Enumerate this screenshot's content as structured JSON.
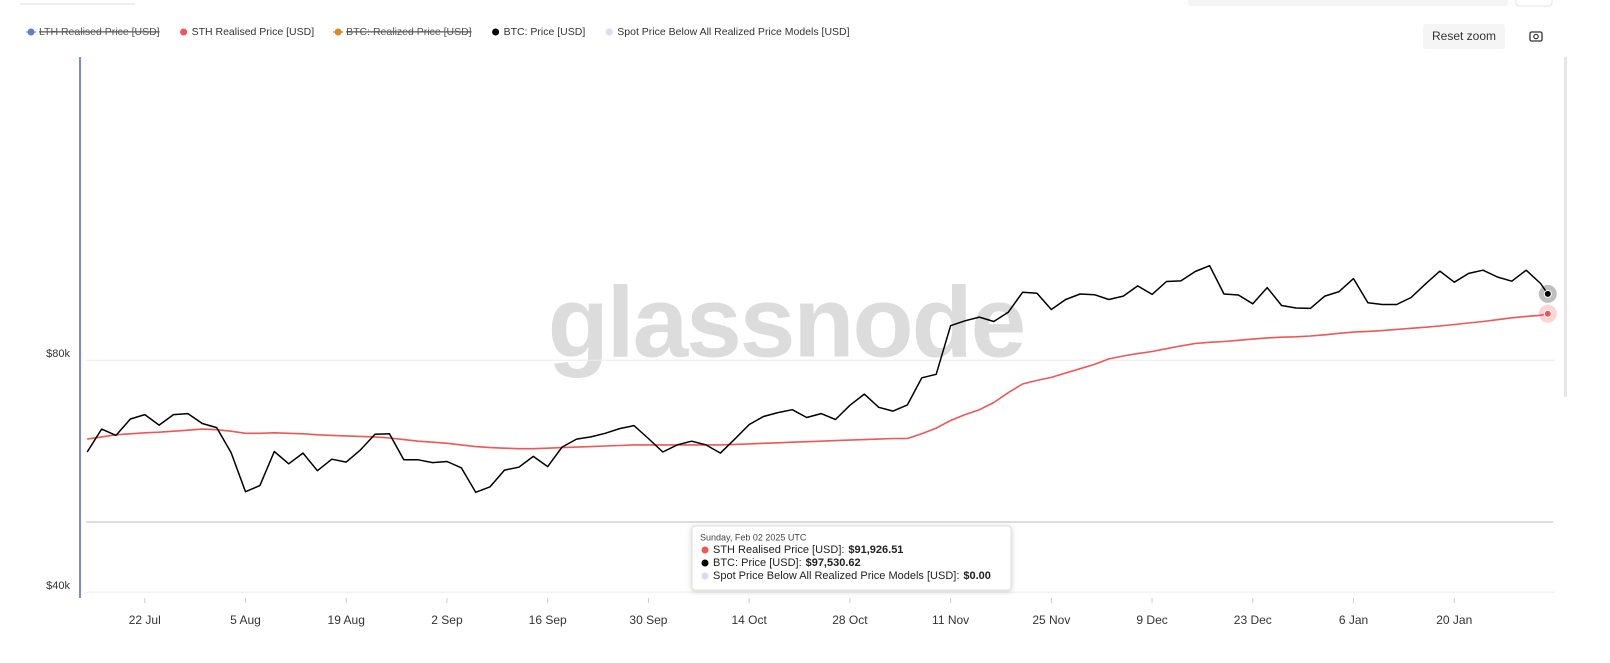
{
  "chart_data": {
    "type": "line",
    "watermark": "glassnode",
    "reset_zoom": "Reset zoom",
    "log_scale": true,
    "grid": true,
    "legend": [
      {
        "name": "LTH Realised Price [USD]",
        "color": "#5b7fd0",
        "hidden": true
      },
      {
        "name": "STH Realised Price [USD]",
        "color": "#f05656",
        "hidden": false
      },
      {
        "name": "BTC: Realized Price [USD]",
        "color": "#e08a1e",
        "hidden": true
      },
      {
        "name": "BTC: Price [USD]",
        "color": "#000000",
        "hidden": false
      },
      {
        "name": "Spot Price Below All Realized Price Models [USD]",
        "color": "#dcd8f5",
        "hidden": false
      }
    ],
    "x": [
      "2024-07-14",
      "2024-07-16",
      "2024-07-18",
      "2024-07-20",
      "2024-07-22",
      "2024-07-24",
      "2024-07-26",
      "2024-07-28",
      "2024-07-30",
      "2024-08-01",
      "2024-08-03",
      "2024-08-05",
      "2024-08-07",
      "2024-08-09",
      "2024-08-11",
      "2024-08-13",
      "2024-08-15",
      "2024-08-17",
      "2024-08-19",
      "2024-08-21",
      "2024-08-23",
      "2024-08-25",
      "2024-08-27",
      "2024-08-29",
      "2024-08-31",
      "2024-09-02",
      "2024-09-04",
      "2024-09-06",
      "2024-09-08",
      "2024-09-10",
      "2024-09-12",
      "2024-09-14",
      "2024-09-16",
      "2024-09-18",
      "2024-09-20",
      "2024-09-22",
      "2024-09-24",
      "2024-09-26",
      "2024-09-28",
      "2024-09-30",
      "2024-10-02",
      "2024-10-04",
      "2024-10-06",
      "2024-10-08",
      "2024-10-10",
      "2024-10-12",
      "2024-10-14",
      "2024-10-16",
      "2024-10-18",
      "2024-10-20",
      "2024-10-22",
      "2024-10-24",
      "2024-10-26",
      "2024-10-28",
      "2024-10-30",
      "2024-11-01",
      "2024-11-03",
      "2024-11-05",
      "2024-11-07",
      "2024-11-09",
      "2024-11-11",
      "2024-11-13",
      "2024-11-15",
      "2024-11-17",
      "2024-11-19",
      "2024-11-21",
      "2024-11-23",
      "2024-11-25",
      "2024-11-27",
      "2024-11-29",
      "2024-12-01",
      "2024-12-03",
      "2024-12-05",
      "2024-12-07",
      "2024-12-09",
      "2024-12-11",
      "2024-12-13",
      "2024-12-15",
      "2024-12-17",
      "2024-12-19",
      "2024-12-21",
      "2024-12-23",
      "2024-12-25",
      "2024-12-27",
      "2024-12-29",
      "2024-12-31",
      "2025-01-02",
      "2025-01-04",
      "2025-01-06",
      "2025-01-08",
      "2025-01-10",
      "2025-01-12",
      "2025-01-14",
      "2025-01-16",
      "2025-01-18",
      "2025-01-20",
      "2025-01-22",
      "2025-01-24",
      "2025-01-26",
      "2025-01-28",
      "2025-01-30",
      "2025-02-01",
      "2025-02-02"
    ],
    "series": [
      {
        "name": "STH Realised Price [USD]",
        "color": "#f05656",
        "values": [
          63200,
          63600,
          64000,
          64200,
          64400,
          64500,
          64700,
          64900,
          65100,
          65000,
          64700,
          64300,
          64300,
          64400,
          64300,
          64200,
          64000,
          63900,
          63800,
          63700,
          63600,
          63400,
          63100,
          62800,
          62600,
          62400,
          62100,
          61800,
          61600,
          61500,
          61400,
          61400,
          61500,
          61600,
          61700,
          61800,
          61900,
          62000,
          62100,
          62100,
          62100,
          62100,
          62100,
          62100,
          62100,
          62200,
          62300,
          62400,
          62500,
          62600,
          62700,
          62800,
          62900,
          63000,
          63100,
          63200,
          63300,
          63300,
          64200,
          65300,
          66800,
          68000,
          69000,
          70500,
          72600,
          74500,
          75300,
          76000,
          77000,
          78000,
          79000,
          80300,
          81000,
          81600,
          82100,
          82800,
          83500,
          84100,
          84400,
          84600,
          84900,
          85200,
          85500,
          85700,
          85800,
          86000,
          86300,
          86700,
          87000,
          87200,
          87400,
          87700,
          88000,
          88300,
          88600,
          89000,
          89400,
          89800,
          90300,
          90800,
          91200,
          91500,
          91926.51
        ]
      },
      {
        "name": "BTC: Price [USD]",
        "color": "#000000",
        "values": [
          60800,
          65100,
          63900,
          67100,
          68000,
          65900,
          68000,
          68200,
          66200,
          65400,
          60700,
          54000,
          55000,
          60900,
          58700,
          60600,
          57500,
          59500,
          59000,
          61200,
          64100,
          64200,
          59400,
          59400,
          58900,
          59100,
          58000,
          53900,
          54800,
          57600,
          58100,
          60000,
          58200,
          61700,
          63200,
          63600,
          64300,
          65200,
          65800,
          63300,
          60800,
          62100,
          62800,
          62100,
          60600,
          63200,
          66000,
          67600,
          68400,
          69000,
          67400,
          68200,
          67000,
          69900,
          72300,
          69500,
          68700,
          70000,
          75900,
          76700,
          88700,
          90000,
          91000,
          89800,
          92300,
          98000,
          97700,
          93100,
          95900,
          97500,
          97300,
          95900,
          96900,
          99900,
          97400,
          101200,
          101400,
          104300,
          106100,
          97500,
          97200,
          94700,
          99400,
          94200,
          93500,
          93400,
          96900,
          98200,
          102100,
          95000,
          94500,
          94500,
          96500,
          100500,
          104400,
          101000,
          103700,
          104700,
          102600,
          101300,
          104700,
          100600,
          97530.62
        ]
      }
    ],
    "xlim": [
      "2024-07-13",
      "2025-02-03"
    ],
    "xticks": [
      {
        "value": "2024-07-22",
        "label": "22 Jul"
      },
      {
        "value": "2024-08-05",
        "label": "5 Aug"
      },
      {
        "value": "2024-08-19",
        "label": "19 Aug"
      },
      {
        "value": "2024-09-02",
        "label": "2 Sep"
      },
      {
        "value": "2024-09-16",
        "label": "16 Sep"
      },
      {
        "value": "2024-09-30",
        "label": "30 Sep"
      },
      {
        "value": "2024-10-14",
        "label": "14 Oct"
      },
      {
        "value": "2024-10-28",
        "label": "28 Oct"
      },
      {
        "value": "2024-11-11",
        "label": "11 Nov"
      },
      {
        "value": "2024-11-25",
        "label": "25 Nov"
      },
      {
        "value": "2024-12-09",
        "label": "9 Dec"
      },
      {
        "value": "2024-12-23",
        "label": "23 Dec"
      },
      {
        "value": "2025-01-06",
        "label": "6 Jan"
      },
      {
        "value": "2025-01-20",
        "label": "20 Jan"
      }
    ],
    "ylim": [
      39300,
      198000
    ],
    "yticks": [
      {
        "value": 40000,
        "label": "$40k"
      },
      {
        "value": 80000,
        "label": "$80k"
      }
    ],
    "tooltip": {
      "title": "Sunday, Feb 02 2025 UTC",
      "items": [
        {
          "name": "STH Realised Price [USD]",
          "color": "#f05656",
          "value_label": "$91,926.51"
        },
        {
          "name": "BTC: Price [USD]",
          "color": "#000000",
          "value_label": "$97,530.62"
        },
        {
          "name": "Spot Price Below All Realized Price Models [USD]",
          "color": "#dcd8f5",
          "value_label": "$0.00"
        }
      ]
    }
  }
}
